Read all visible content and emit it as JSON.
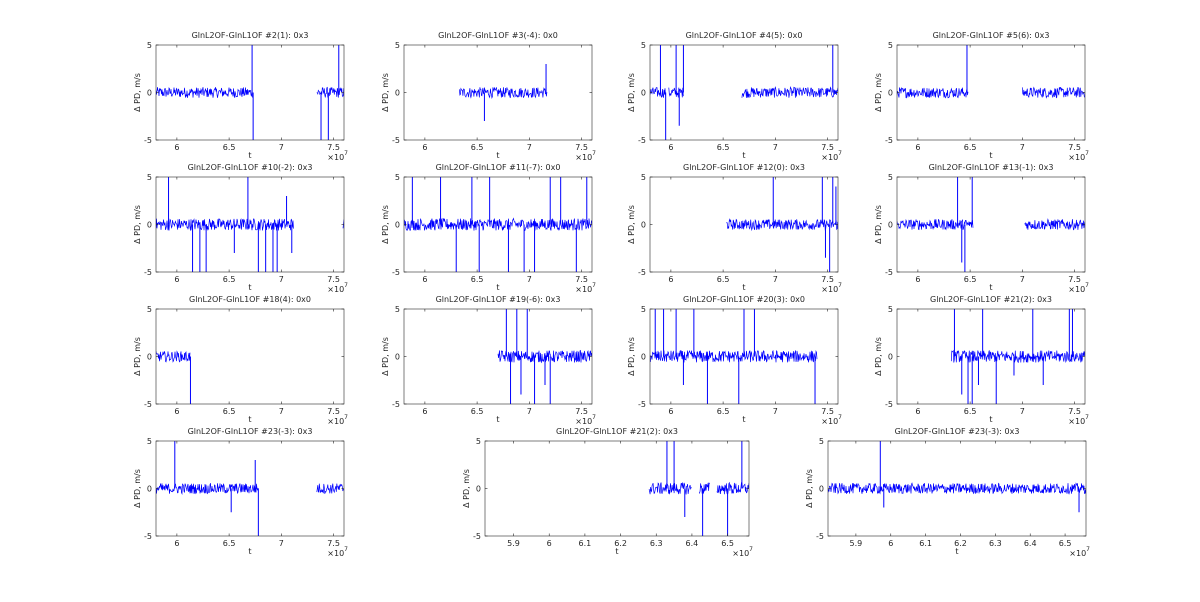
{
  "figure": {
    "background": "#ffffff",
    "line_color": "#0000ff",
    "axis_color": "#262626"
  },
  "chart_data": [
    {
      "type": "line",
      "title": "GlnL2OF-GlnL1OF #2(1): 0x3",
      "xlabel": "t",
      "ylabel": "Δ PD, m/s",
      "x_multiplier_label": "×10",
      "x_multiplier_exp": "7",
      "xlim": [
        5.8,
        7.6
      ],
      "ylim": [
        -5,
        5
      ],
      "xticks": [
        6,
        6.5,
        7,
        7.5
      ],
      "xticklabels": [
        "6",
        "6.5",
        "7",
        "7.5"
      ],
      "yticks": [
        -5,
        0,
        5
      ],
      "yticklabels": [
        "-5",
        "0",
        "5"
      ],
      "segments": [
        [
          5.8,
          6.73
        ],
        [
          7.34,
          7.6
        ]
      ],
      "noise": 0.35,
      "spikes": [
        [
          6.72,
          5
        ],
        [
          6.73,
          -5
        ],
        [
          7.38,
          -5
        ],
        [
          7.45,
          -5
        ],
        [
          7.55,
          5
        ]
      ]
    },
    {
      "type": "line",
      "title": "GlnL2OF-GlnL1OF #3(-4): 0x0",
      "xlabel": "t",
      "ylabel": "Δ PD, m/s",
      "x_multiplier_label": "×10",
      "x_multiplier_exp": "7",
      "xlim": [
        5.8,
        7.6
      ],
      "ylim": [
        -5,
        5
      ],
      "xticks": [
        6,
        6.5,
        7,
        7.5
      ],
      "xticklabels": [
        "6",
        "6.5",
        "7",
        "7.5"
      ],
      "yticks": [
        -5,
        0,
        5
      ],
      "yticklabels": [
        "-5",
        "0",
        "5"
      ],
      "segments": [
        [
          6.33,
          7.17
        ]
      ],
      "noise": 0.35,
      "spikes": [
        [
          6.57,
          -3
        ],
        [
          7.16,
          3
        ]
      ]
    },
    {
      "type": "line",
      "title": "GlnL2OF-GlnL1OF #4(5): 0x0",
      "xlabel": "t",
      "ylabel": "Δ PD, m/s",
      "x_multiplier_label": "×10",
      "x_multiplier_exp": "7",
      "xlim": [
        5.8,
        7.6
      ],
      "ylim": [
        -5,
        5
      ],
      "xticks": [
        6,
        6.5,
        7,
        7.5
      ],
      "xticklabels": [
        "6",
        "6.5",
        "7",
        "7.5"
      ],
      "yticks": [
        -5,
        0,
        5
      ],
      "yticklabels": [
        "-5",
        "0",
        "5"
      ],
      "segments": [
        [
          5.8,
          5.95
        ],
        [
          5.98,
          6.12
        ],
        [
          6.68,
          7.6
        ]
      ],
      "noise": 0.35,
      "spikes": [
        [
          5.9,
          5
        ],
        [
          5.95,
          -5
        ],
        [
          6.05,
          5
        ],
        [
          6.08,
          -3.5
        ],
        [
          6.12,
          5
        ],
        [
          7.55,
          5
        ]
      ]
    },
    {
      "type": "line",
      "title": "GlnL2OF-GlnL1OF #5(6): 0x3",
      "xlabel": "t",
      "ylabel": "Δ PD, m/s",
      "x_multiplier_label": "×10",
      "x_multiplier_exp": "7",
      "xlim": [
        5.8,
        7.6
      ],
      "ylim": [
        -5,
        5
      ],
      "xticks": [
        6,
        6.5,
        7,
        7.5
      ],
      "xticklabels": [
        "6",
        "6.5",
        "7",
        "7.5"
      ],
      "yticks": [
        -5,
        0,
        5
      ],
      "yticklabels": [
        "-5",
        "0",
        "5"
      ],
      "segments": [
        [
          5.8,
          6.48
        ],
        [
          7.0,
          7.6
        ]
      ],
      "noise": 0.35,
      "spikes": [
        [
          6.47,
          5
        ]
      ]
    },
    {
      "type": "line",
      "title": "GlnL2OF-GlnL1OF #10(-2): 0x3",
      "xlabel": "t",
      "ylabel": "Δ PD, m/s",
      "x_multiplier_label": "×10",
      "x_multiplier_exp": "7",
      "xlim": [
        5.8,
        7.6
      ],
      "ylim": [
        -5,
        5
      ],
      "xticks": [
        6,
        6.5,
        7,
        7.5
      ],
      "xticklabels": [
        "6",
        "6.5",
        "7",
        "7.5"
      ],
      "yticks": [
        -5,
        0,
        5
      ],
      "yticklabels": [
        "-5",
        "0",
        "5"
      ],
      "segments": [
        [
          5.8,
          7.12
        ],
        [
          7.59,
          7.6
        ]
      ],
      "noise": 0.4,
      "spikes": [
        [
          5.92,
          5
        ],
        [
          6.15,
          -5
        ],
        [
          6.22,
          -5
        ],
        [
          6.28,
          -5
        ],
        [
          6.55,
          -3
        ],
        [
          6.68,
          5
        ],
        [
          6.78,
          -5
        ],
        [
          6.85,
          -5
        ],
        [
          6.92,
          -5
        ],
        [
          6.96,
          -5
        ],
        [
          7.05,
          3
        ],
        [
          7.1,
          -3
        ]
      ]
    },
    {
      "type": "line",
      "title": "GlnL2OF-GlnL1OF #11(-7): 0x0",
      "xlabel": "t",
      "ylabel": "Δ PD, m/s",
      "x_multiplier_label": "×10",
      "x_multiplier_exp": "7",
      "xlim": [
        5.8,
        7.6
      ],
      "ylim": [
        -5,
        5
      ],
      "xticks": [
        6,
        6.5,
        7,
        7.5
      ],
      "xticklabels": [
        "6",
        "6.5",
        "7",
        "7.5"
      ],
      "yticks": [
        -5,
        0,
        5
      ],
      "yticklabels": [
        "-5",
        "0",
        "5"
      ],
      "segments": [
        [
          5.8,
          7.6
        ]
      ],
      "noise": 0.4,
      "spikes": [
        [
          5.88,
          5
        ],
        [
          6.15,
          5
        ],
        [
          6.3,
          -5
        ],
        [
          6.45,
          5
        ],
        [
          6.52,
          -5
        ],
        [
          6.62,
          5
        ],
        [
          6.8,
          -5
        ],
        [
          6.95,
          -5
        ],
        [
          7.05,
          -5
        ],
        [
          7.2,
          5
        ],
        [
          7.3,
          5
        ],
        [
          7.45,
          -5
        ],
        [
          7.55,
          5
        ]
      ]
    },
    {
      "type": "line",
      "title": "GlnL2OF-GlnL1OF #12(0): 0x3",
      "xlabel": "t",
      "ylabel": "Δ PD, m/s",
      "x_multiplier_label": "×10",
      "x_multiplier_exp": "7",
      "xlim": [
        5.8,
        7.6
      ],
      "ylim": [
        -5,
        5
      ],
      "xticks": [
        6,
        6.5,
        7,
        7.5
      ],
      "xticklabels": [
        "6",
        "6.5",
        "7",
        "7.5"
      ],
      "yticks": [
        -5,
        0,
        5
      ],
      "yticklabels": [
        "-5",
        "0",
        "5"
      ],
      "segments": [
        [
          6.53,
          7.6
        ]
      ],
      "noise": 0.35,
      "spikes": [
        [
          6.98,
          5
        ],
        [
          7.45,
          5
        ],
        [
          7.48,
          -3.5
        ],
        [
          7.52,
          -5
        ],
        [
          7.55,
          5
        ],
        [
          7.58,
          4
        ]
      ]
    },
    {
      "type": "line",
      "title": "GlnL2OF-GlnL1OF #13(-1): 0x3",
      "xlabel": "t",
      "ylabel": "Δ PD, m/s",
      "x_multiplier_label": "×10",
      "x_multiplier_exp": "7",
      "xlim": [
        5.8,
        7.6
      ],
      "ylim": [
        -5,
        5
      ],
      "xticks": [
        6,
        6.5,
        7,
        7.5
      ],
      "xticklabels": [
        "6",
        "6.5",
        "7",
        "7.5"
      ],
      "yticks": [
        -5,
        0,
        5
      ],
      "yticklabels": [
        "-5",
        "0",
        "5"
      ],
      "segments": [
        [
          5.8,
          6.53
        ],
        [
          7.02,
          7.6
        ]
      ],
      "noise": 0.35,
      "spikes": [
        [
          6.38,
          5
        ],
        [
          6.42,
          -4
        ],
        [
          6.45,
          -5
        ],
        [
          6.52,
          5
        ]
      ]
    },
    {
      "type": "line",
      "title": "GlnL2OF-GlnL1OF #18(4): 0x0",
      "xlabel": "t",
      "ylabel": "Δ PD, m/s",
      "x_multiplier_label": "×10",
      "x_multiplier_exp": "7",
      "xlim": [
        5.8,
        7.6
      ],
      "ylim": [
        -5,
        5
      ],
      "xticks": [
        6,
        6.5,
        7,
        7.5
      ],
      "xticklabels": [
        "6",
        "6.5",
        "7",
        "7.5"
      ],
      "yticks": [
        -5,
        0,
        5
      ],
      "yticklabels": [
        "-5",
        "0",
        "5"
      ],
      "segments": [
        [
          5.8,
          6.13
        ]
      ],
      "noise": 0.35,
      "spikes": [
        [
          6.13,
          -5
        ]
      ]
    },
    {
      "type": "line",
      "title": "GlnL2OF-GlnL1OF #19(-6): 0x3",
      "xlabel": "t",
      "ylabel": "Δ PD, m/s",
      "x_multiplier_label": "×10",
      "x_multiplier_exp": "7",
      "xlim": [
        5.8,
        7.6
      ],
      "ylim": [
        -5,
        5
      ],
      "xticks": [
        6,
        6.5,
        7,
        7.5
      ],
      "xticklabels": [
        "6",
        "6.5",
        "7",
        "7.5"
      ],
      "yticks": [
        -5,
        0,
        5
      ],
      "yticklabels": [
        "-5",
        "0",
        "5"
      ],
      "segments": [
        [
          6.7,
          7.6
        ]
      ],
      "noise": 0.4,
      "spikes": [
        [
          6.78,
          5
        ],
        [
          6.82,
          -5
        ],
        [
          6.88,
          5
        ],
        [
          6.92,
          -4
        ],
        [
          6.98,
          5
        ],
        [
          7.05,
          -5
        ],
        [
          7.15,
          -3
        ],
        [
          7.2,
          -5
        ]
      ]
    },
    {
      "type": "line",
      "title": "GlnL2OF-GlnL1OF #20(3): 0x0",
      "xlabel": "t",
      "ylabel": "Δ PD, m/s",
      "x_multiplier_label": "×10",
      "x_multiplier_exp": "7",
      "xlim": [
        5.8,
        7.6
      ],
      "ylim": [
        -5,
        5
      ],
      "xticks": [
        6,
        6.5,
        7,
        7.5
      ],
      "xticklabels": [
        "6",
        "6.5",
        "7",
        "7.5"
      ],
      "yticks": [
        -5,
        0,
        5
      ],
      "yticklabels": [
        "-5",
        "0",
        "5"
      ],
      "segments": [
        [
          5.8,
          7.4
        ]
      ],
      "noise": 0.4,
      "spikes": [
        [
          5.85,
          5
        ],
        [
          5.93,
          5
        ],
        [
          6.05,
          5
        ],
        [
          6.12,
          -3
        ],
        [
          6.22,
          5
        ],
        [
          6.35,
          -5
        ],
        [
          6.65,
          -5
        ],
        [
          6.7,
          5
        ],
        [
          6.8,
          5
        ],
        [
          7.38,
          -5
        ]
      ]
    },
    {
      "type": "line",
      "title": "GlnL2OF-GlnL1OF #21(2): 0x3",
      "xlabel": "t",
      "ylabel": "Δ PD, m/s",
      "x_multiplier_label": "×10",
      "x_multiplier_exp": "7",
      "xlim": [
        5.8,
        7.6
      ],
      "ylim": [
        -5,
        5
      ],
      "xticks": [
        6,
        6.5,
        7,
        7.5
      ],
      "xticklabels": [
        "6",
        "6.5",
        "7",
        "7.5"
      ],
      "yticks": [
        -5,
        0,
        5
      ],
      "yticklabels": [
        "-5",
        "0",
        "5"
      ],
      "segments": [
        [
          6.32,
          7.6
        ]
      ],
      "noise": 0.4,
      "spikes": [
        [
          6.35,
          5
        ],
        [
          6.42,
          -4
        ],
        [
          6.48,
          -5
        ],
        [
          6.52,
          -5
        ],
        [
          6.58,
          -3
        ],
        [
          6.62,
          5
        ],
        [
          6.75,
          -5
        ],
        [
          6.92,
          -2
        ],
        [
          7.1,
          5
        ],
        [
          7.2,
          -3
        ],
        [
          7.45,
          5
        ],
        [
          7.48,
          5
        ]
      ]
    },
    {
      "type": "line",
      "title": "GlnL2OF-GlnL1OF #23(-3): 0x3",
      "xlabel": "t",
      "ylabel": "Δ PD, m/s",
      "x_multiplier_label": "×10",
      "x_multiplier_exp": "7",
      "xlim": [
        5.8,
        7.6
      ],
      "ylim": [
        -5,
        5
      ],
      "xticks": [
        6,
        6.5,
        7,
        7.5
      ],
      "xticklabels": [
        "6",
        "6.5",
        "7",
        "7.5"
      ],
      "yticks": [
        -5,
        0,
        5
      ],
      "yticklabels": [
        "-5",
        "0",
        "5"
      ],
      "segments": [
        [
          5.8,
          6.78
        ],
        [
          7.34,
          7.6
        ]
      ],
      "noise": 0.35,
      "spikes": [
        [
          5.98,
          5
        ],
        [
          6.52,
          -2.5
        ],
        [
          6.75,
          3
        ],
        [
          6.78,
          -5
        ]
      ]
    },
    {
      "type": "line",
      "title": "GlnL2OF-GlnL1OF #21(2): 0x3",
      "xlabel": "t",
      "ylabel": "Δ PD, m/s",
      "x_multiplier_label": "×10",
      "x_multiplier_exp": "7",
      "xlim": [
        5.82,
        6.56
      ],
      "ylim": [
        -5,
        5
      ],
      "xticks": [
        5.9,
        6,
        6.1,
        6.2,
        6.3,
        6.4,
        6.5
      ],
      "xticklabels": [
        "5.9",
        "6",
        "6.1",
        "6.2",
        "6.3",
        "6.4",
        "6.5"
      ],
      "yticks": [
        -5,
        0,
        5
      ],
      "yticklabels": [
        "-5",
        "0",
        "5"
      ],
      "segments": [
        [
          6.28,
          6.4
        ],
        [
          6.42,
          6.45
        ],
        [
          6.47,
          6.56
        ]
      ],
      "noise": 0.4,
      "spikes": [
        [
          6.33,
          5
        ],
        [
          6.35,
          5
        ],
        [
          6.38,
          -3
        ],
        [
          6.43,
          -5
        ],
        [
          6.5,
          -5
        ],
        [
          6.54,
          5
        ]
      ]
    },
    {
      "type": "line",
      "title": "GlnL2OF-GlnL1OF #23(-3): 0x3",
      "xlabel": "t",
      "ylabel": "Δ PD, m/s",
      "x_multiplier_label": "×10",
      "x_multiplier_exp": "7",
      "xlim": [
        5.82,
        6.56
      ],
      "ylim": [
        -5,
        5
      ],
      "xticks": [
        5.9,
        6,
        6.1,
        6.2,
        6.3,
        6.4,
        6.5
      ],
      "xticklabels": [
        "5.9",
        "6",
        "6.1",
        "6.2",
        "6.3",
        "6.4",
        "6.5"
      ],
      "yticks": [
        -5,
        0,
        5
      ],
      "yticklabels": [
        "-5",
        "0",
        "5"
      ],
      "segments": [
        [
          5.82,
          6.56
        ]
      ],
      "noise": 0.35,
      "spikes": [
        [
          5.97,
          5
        ],
        [
          5.98,
          -2
        ],
        [
          6.54,
          -2.5
        ]
      ]
    }
  ]
}
